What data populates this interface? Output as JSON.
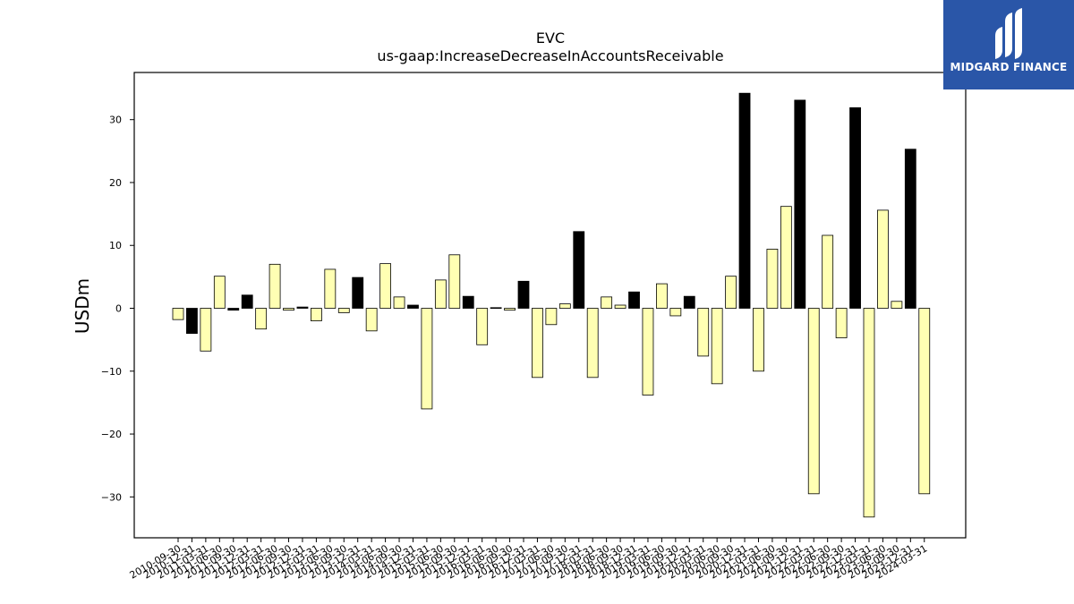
{
  "chart_data": {
    "type": "bar",
    "title": "EVC",
    "subtitle": "us-gaap:IncreaseDecreaseInAccountsReceivable",
    "ylabel": "USDm",
    "xlabel": "",
    "ylim": [
      -36.5,
      37.5
    ],
    "yticks": [
      -30,
      -20,
      -10,
      0,
      10,
      20,
      30
    ],
    "ytick_labels": [
      "−30",
      "−20",
      "−10",
      "0",
      "10",
      "20",
      "30"
    ],
    "grid": false,
    "colors": {
      "positive_style": "#ffffb3",
      "highlight": "#000000",
      "edge": "#000000"
    },
    "categories": [
      "2010-09-30",
      "2010-12-31",
      "2011-03-31",
      "2011-06-30",
      "2011-09-30",
      "2011-12-31",
      "2012-03-31",
      "2012-06-30",
      "2012-09-30",
      "2012-12-31",
      "2013-03-31",
      "2013-06-30",
      "2013-09-30",
      "2013-12-31",
      "2014-03-31",
      "2014-06-30",
      "2014-09-30",
      "2014-12-31",
      "2015-03-31",
      "2015-06-30",
      "2015-09-30",
      "2015-12-31",
      "2016-03-31",
      "2016-06-30",
      "2016-09-30",
      "2016-12-31",
      "2017-03-31",
      "2017-06-30",
      "2017-09-30",
      "2017-12-31",
      "2018-03-31",
      "2018-06-30",
      "2018-09-30",
      "2018-12-31",
      "2019-03-31",
      "2019-06-30",
      "2019-09-30",
      "2019-12-31",
      "2020-03-31",
      "2020-06-30",
      "2020-09-30",
      "2020-12-31",
      "2021-03-31",
      "2021-06-30",
      "2021-09-30",
      "2021-12-31",
      "2022-03-31",
      "2022-06-30",
      "2022-09-30",
      "2022-12-31",
      "2023-03-31",
      "2023-06-30",
      "2023-09-30",
      "2023-12-31",
      "2024-03-31"
    ],
    "values": [
      -1.8,
      -4.0,
      -6.8,
      5.1,
      -0.3,
      2.1,
      -3.3,
      7.0,
      -0.3,
      0.2,
      -2.0,
      6.2,
      -0.7,
      4.9,
      -3.6,
      7.1,
      1.8,
      0.5,
      -16.0,
      4.5,
      8.5,
      1.9,
      -5.8,
      0.1,
      -0.3,
      4.3,
      -11.0,
      -2.6,
      0.7,
      12.2,
      -11.0,
      1.8,
      0.5,
      2.6,
      -13.8,
      3.9,
      -1.2,
      1.9,
      -7.6,
      -12.0,
      5.1,
      34.2,
      -10.0,
      9.4,
      16.2,
      33.1,
      -29.5,
      11.6,
      -4.7,
      31.9,
      -33.2,
      15.6,
      1.1,
      25.3,
      -29.5
    ],
    "highlight": [
      false,
      true,
      false,
      false,
      true,
      true,
      false,
      false,
      false,
      true,
      false,
      false,
      false,
      true,
      false,
      false,
      false,
      true,
      false,
      false,
      false,
      true,
      false,
      true,
      false,
      true,
      false,
      false,
      false,
      true,
      false,
      false,
      false,
      true,
      false,
      false,
      false,
      true,
      false,
      false,
      false,
      true,
      false,
      false,
      false,
      true,
      false,
      false,
      false,
      true,
      false,
      false,
      false,
      true,
      false
    ]
  },
  "logo": {
    "text": "MIDGARD FINANCE"
  }
}
